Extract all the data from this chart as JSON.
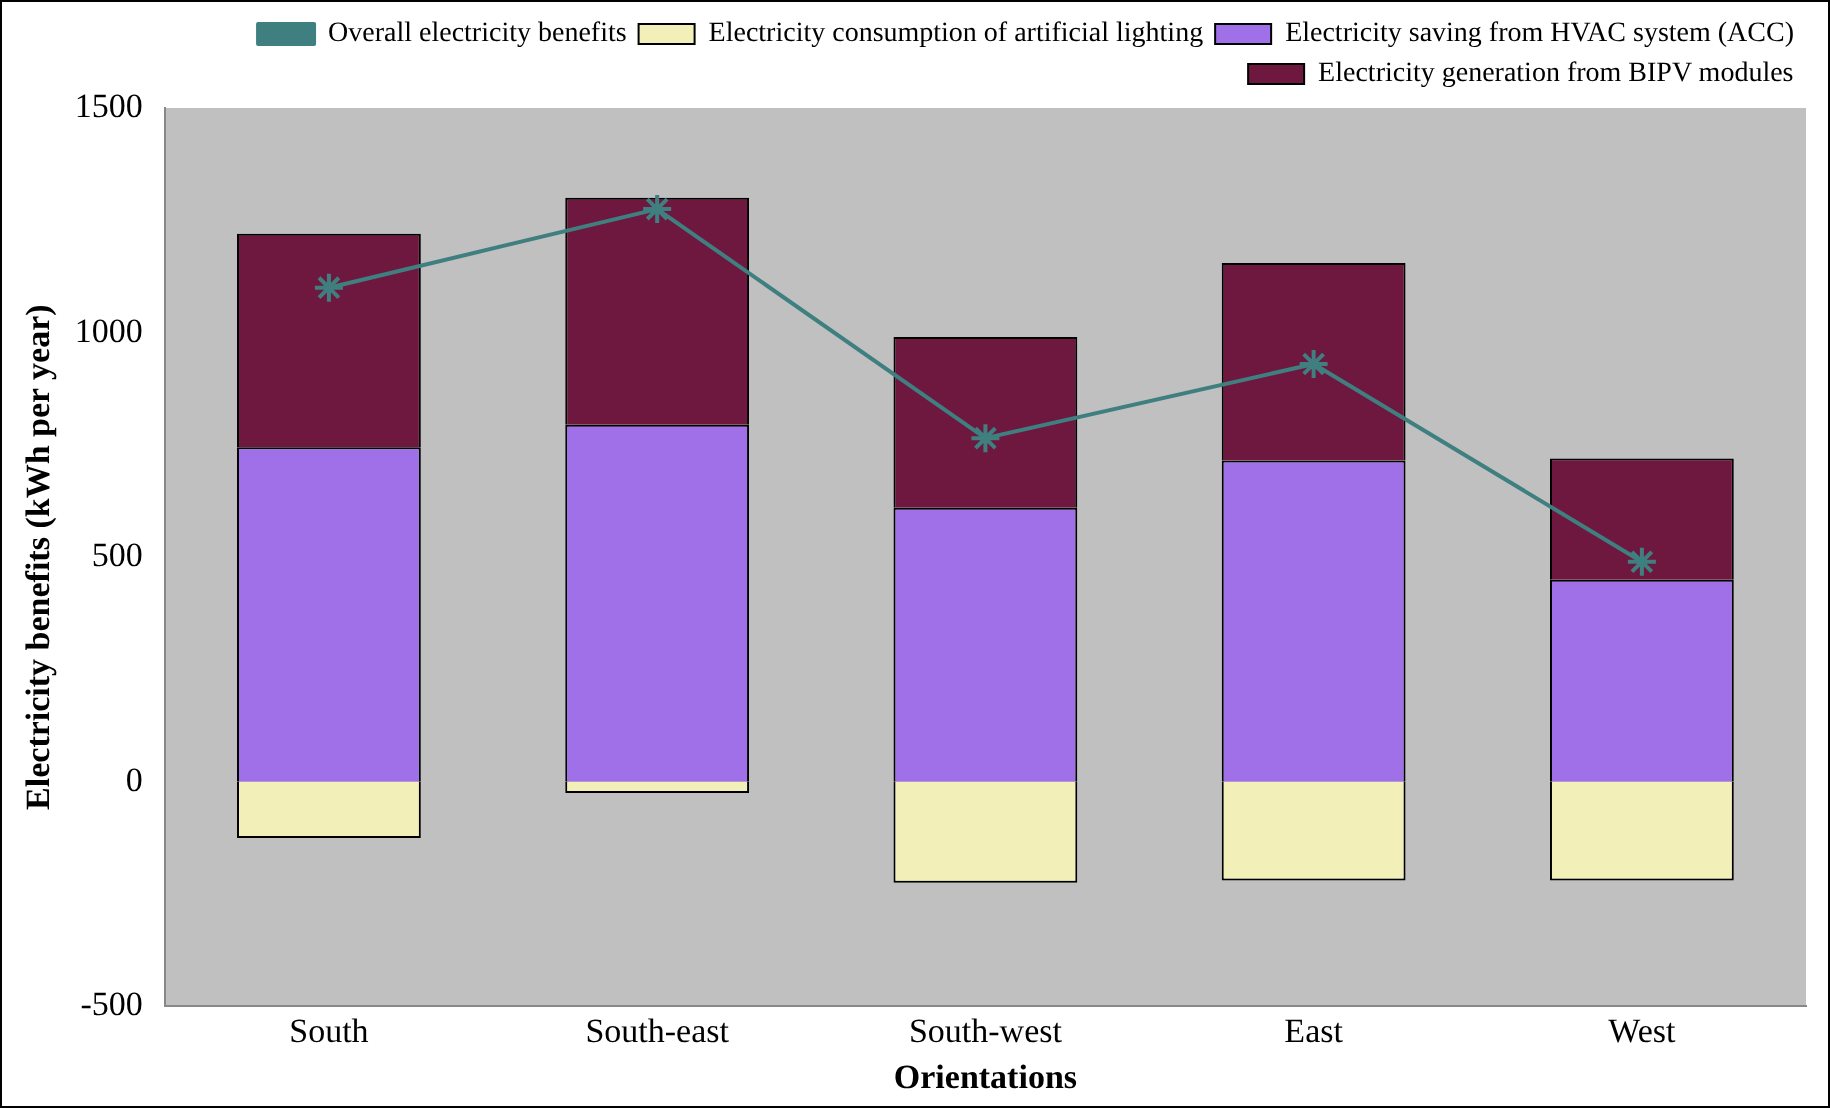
{
  "chart_data": {
    "type": "bar",
    "stacked": true,
    "xlabel": "Orientations",
    "ylabel": "Electricity benefits (kWh per year)",
    "categories": [
      "South",
      "South-east",
      "South-west",
      "East",
      "West"
    ],
    "series": [
      {
        "name": "Electricity consumption of artificial lighting",
        "color": "#f2f0b8",
        "values": [
          -125,
          -25,
          -225,
          -220,
          -220
        ]
      },
      {
        "name": "Electricity saving from HVAC system (ACC)",
        "color": "#a070e8",
        "values": [
          745,
          795,
          610,
          715,
          450
        ]
      },
      {
        "name": "Electricity generation from BIPV modules",
        "color": "#6e1840",
        "values": [
          475,
          505,
          380,
          440,
          270
        ]
      },
      {
        "name": "Overall electricity benefits",
        "type": "line",
        "color": "#3f7f7f",
        "values": [
          1100,
          1275,
          765,
          930,
          490
        ]
      }
    ],
    "ylim": [
      -500,
      1500
    ],
    "yticks": [
      -500,
      0,
      500,
      1000,
      1500
    ],
    "grid": false,
    "legend": "top right",
    "marker": "cross",
    "line_style": "solid"
  }
}
